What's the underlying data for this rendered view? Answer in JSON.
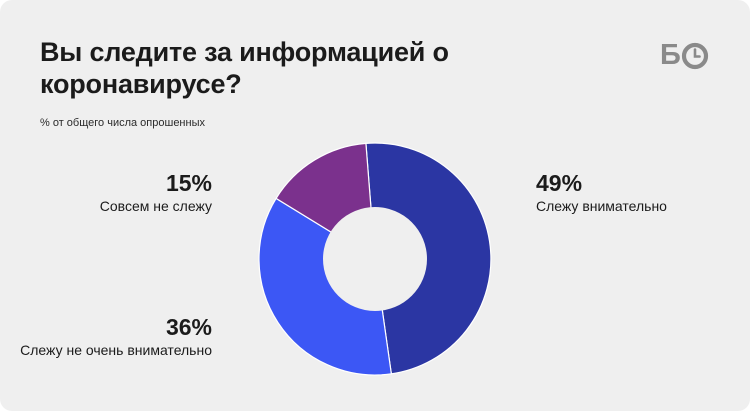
{
  "header": {
    "title": "Вы следите за информацией о коронавирусе?",
    "subtitle": "% от общего числа опрошенных"
  },
  "logo": {
    "text": "БО",
    "color": "#8a8a8a"
  },
  "colors": {
    "background": "#efefef",
    "text": "#1b1b1b",
    "hole": "#efefef"
  },
  "chart_data": {
    "type": "pie",
    "donut": true,
    "unit": "%",
    "series": [
      {
        "name": "Слежу внимательно",
        "value": 49,
        "label": "49%",
        "color": "#2b36a3"
      },
      {
        "name": "Слежу не очень внимательно",
        "value": 36,
        "label": "36%",
        "color": "#3c57f5"
      },
      {
        "name": "Совсем не слежу",
        "value": 15,
        "label": "15%",
        "color": "#7b318d"
      }
    ]
  }
}
